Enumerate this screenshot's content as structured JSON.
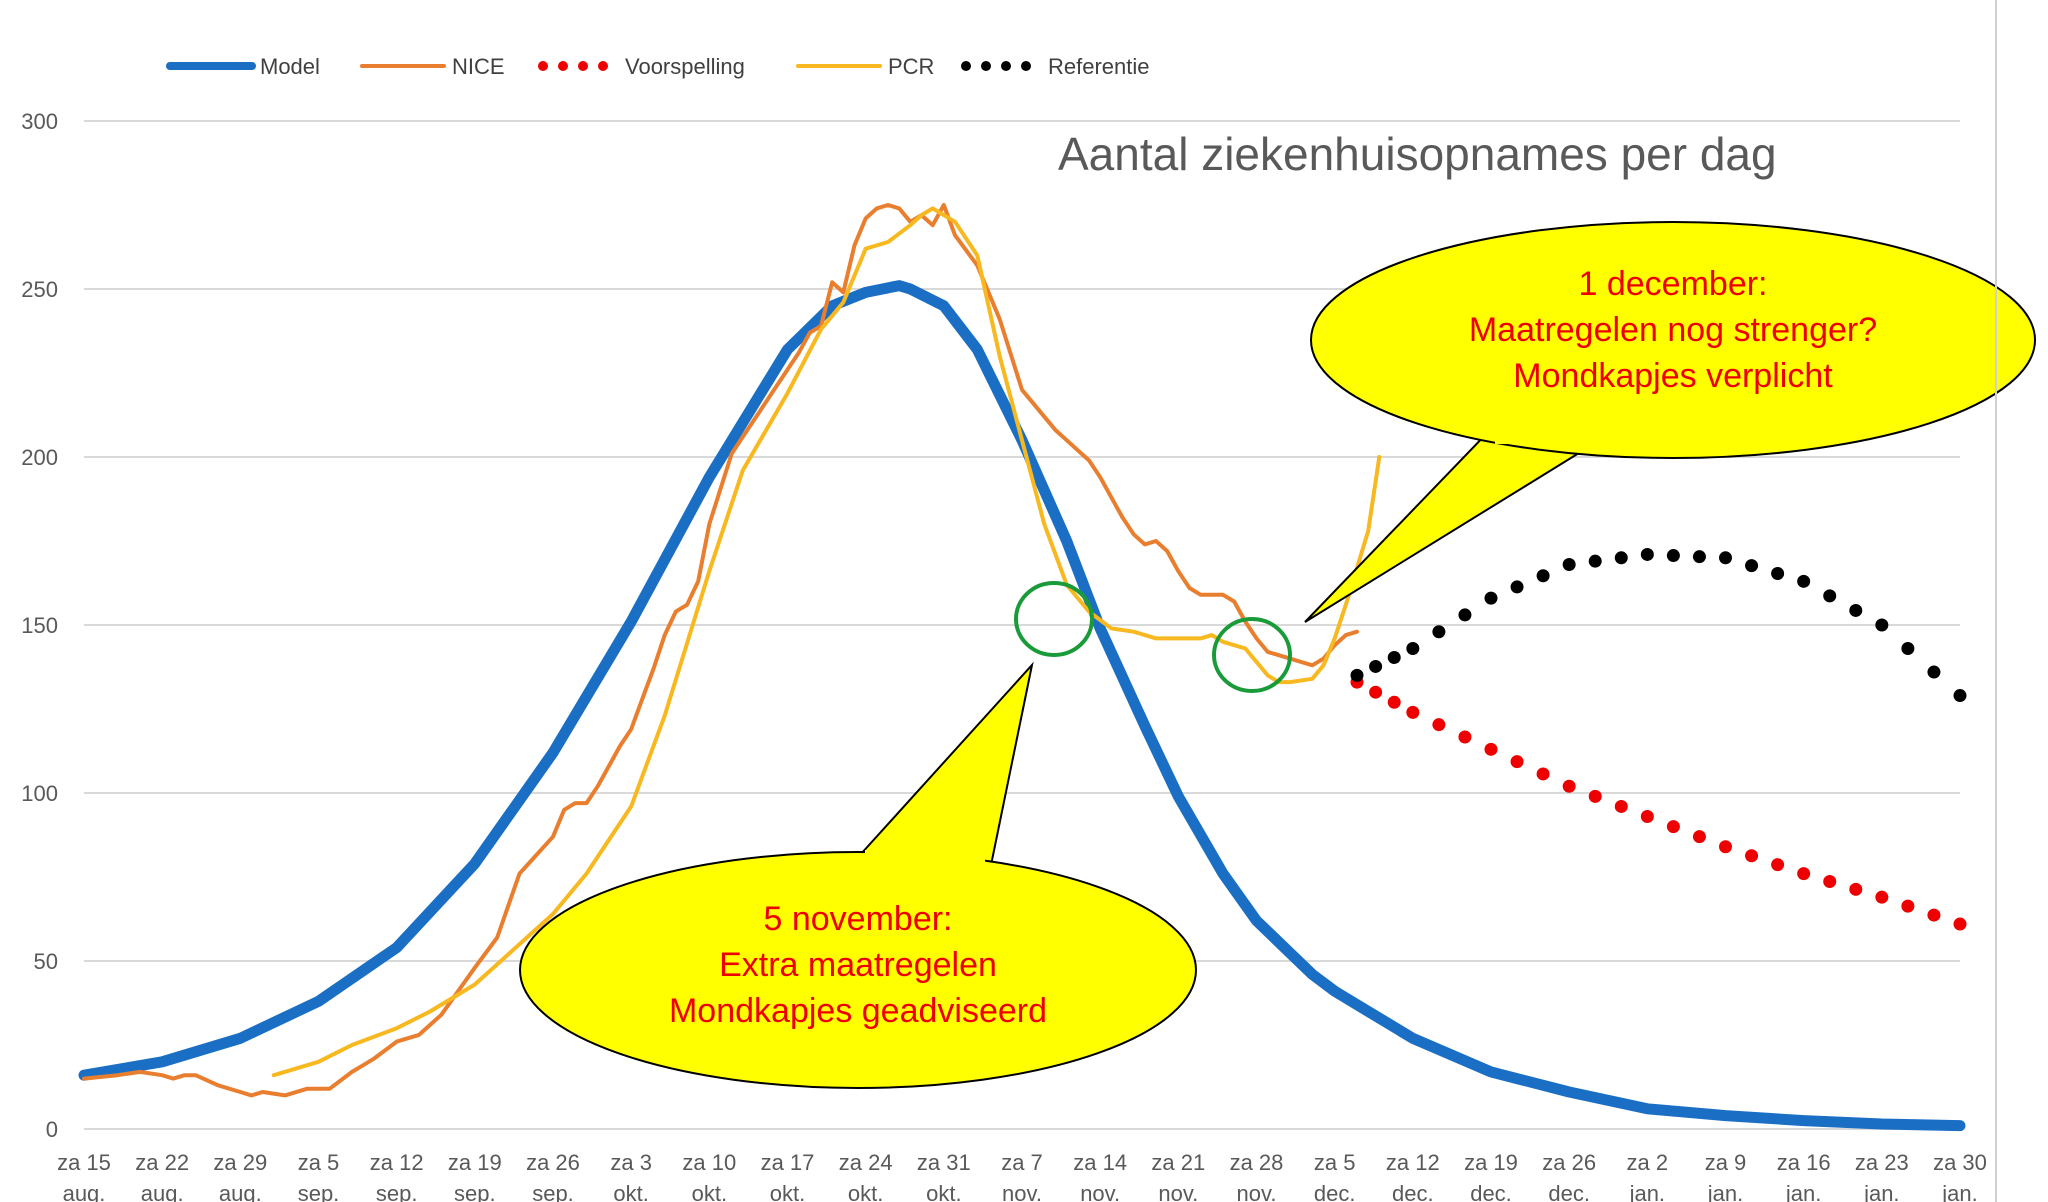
{
  "chart_data": {
    "type": "line",
    "title": "Aantal ziekenhuisopnames per dag",
    "ylim": [
      0,
      300
    ],
    "y_ticks": [
      0,
      50,
      100,
      150,
      200,
      250,
      300
    ],
    "grid": true,
    "legend_position": "top-left",
    "x_ticks": [
      {
        "day": 0,
        "line1": "za 15",
        "line2": "aug."
      },
      {
        "day": 7,
        "line1": "za 22",
        "line2": "aug."
      },
      {
        "day": 14,
        "line1": "za 29",
        "line2": "aug."
      },
      {
        "day": 21,
        "line1": "za 5",
        "line2": "sep."
      },
      {
        "day": 28,
        "line1": "za 12",
        "line2": "sep."
      },
      {
        "day": 35,
        "line1": "za 19",
        "line2": "sep."
      },
      {
        "day": 42,
        "line1": "za 26",
        "line2": "sep."
      },
      {
        "day": 49,
        "line1": "za 3",
        "line2": "okt."
      },
      {
        "day": 56,
        "line1": "za 10",
        "line2": "okt."
      },
      {
        "day": 63,
        "line1": "za 17",
        "line2": "okt."
      },
      {
        "day": 70,
        "line1": "za 24",
        "line2": "okt."
      },
      {
        "day": 77,
        "line1": "za 31",
        "line2": "okt."
      },
      {
        "day": 84,
        "line1": "za 7",
        "line2": "nov."
      },
      {
        "day": 91,
        "line1": "za 14",
        "line2": "nov."
      },
      {
        "day": 98,
        "line1": "za 21",
        "line2": "nov."
      },
      {
        "day": 105,
        "line1": "za 28",
        "line2": "nov."
      },
      {
        "day": 112,
        "line1": "za 5",
        "line2": "dec."
      },
      {
        "day": 119,
        "line1": "za 12",
        "line2": "dec."
      },
      {
        "day": 126,
        "line1": "za 19",
        "line2": "dec."
      },
      {
        "day": 133,
        "line1": "za 26",
        "line2": "dec."
      },
      {
        "day": 140,
        "line1": "za 2",
        "line2": "jan."
      },
      {
        "day": 147,
        "line1": "za 9",
        "line2": "jan."
      },
      {
        "day": 154,
        "line1": "za 16",
        "line2": "jan."
      },
      {
        "day": 161,
        "line1": "za 23",
        "line2": "jan."
      },
      {
        "day": 168,
        "line1": "za 30",
        "line2": "jan."
      }
    ],
    "series": [
      {
        "name": "Model",
        "color": "#1a6fc4",
        "style": "solid-thick",
        "x": [
          0,
          7,
          14,
          21,
          28,
          35,
          42,
          49,
          56,
          63,
          67,
          70,
          73,
          74,
          77,
          80,
          84,
          88,
          91,
          95,
          98,
          102,
          105,
          110,
          112,
          115,
          119,
          126,
          133,
          140,
          147,
          154,
          161,
          168
        ],
        "y": [
          16,
          20,
          27,
          38,
          54,
          79,
          112,
          151,
          194,
          232,
          245,
          249,
          251,
          250,
          245,
          232,
          205,
          175,
          149,
          120,
          99,
          76,
          62,
          46,
          41,
          35,
          27,
          17,
          11,
          6,
          4,
          2.5,
          1.5,
          1
        ]
      },
      {
        "name": "NICE",
        "color": "#e97e2e",
        "style": "solid",
        "x": [
          0,
          3,
          5,
          7,
          8,
          9,
          10,
          12,
          14,
          15,
          16,
          18,
          20,
          22,
          24,
          25,
          26,
          28,
          30,
          32,
          35,
          37,
          39,
          42,
          43,
          44,
          45,
          46,
          48,
          49,
          50,
          51,
          52,
          53,
          54,
          55,
          56,
          58,
          59,
          61,
          62,
          64,
          65,
          66,
          67,
          68,
          69,
          70,
          71,
          72,
          73,
          74,
          75,
          76,
          77,
          78,
          80,
          82,
          84,
          86,
          87,
          88,
          89,
          90,
          91,
          92,
          93,
          94,
          95,
          96,
          97,
          98,
          99,
          100,
          101,
          102,
          103,
          104,
          105,
          106,
          107,
          108,
          109,
          110,
          111,
          112,
          113,
          114
        ],
        "y": [
          15,
          16,
          17,
          16,
          15,
          16,
          16,
          13,
          11,
          10,
          11,
          10,
          12,
          12,
          17,
          19,
          21,
          26,
          28,
          34,
          48,
          57,
          76,
          87,
          95,
          97,
          97,
          102,
          114,
          119,
          128,
          137,
          147,
          154,
          156,
          163,
          180,
          201,
          206,
          216,
          221,
          231,
          237,
          239,
          252,
          249,
          263,
          271,
          274,
          275,
          274,
          270,
          272,
          269,
          275,
          266,
          257,
          241,
          220,
          212,
          208,
          205,
          202,
          199,
          194,
          188,
          182,
          177,
          174,
          175,
          172,
          166,
          161,
          159,
          159,
          159,
          157,
          151,
          146,
          142,
          141,
          140,
          139,
          138,
          140,
          144,
          147,
          148
        ]
      },
      {
        "name": "Voorspelling",
        "color": "#ee0000",
        "style": "dotted",
        "x": [
          114,
          119,
          126,
          133,
          140,
          147,
          154,
          161,
          168
        ],
        "y": [
          133,
          124,
          113,
          102,
          93,
          84,
          76,
          69,
          61
        ]
      },
      {
        "name": "PCR",
        "color": "#f8b81f",
        "style": "solid",
        "x": [
          17,
          21,
          24,
          28,
          31,
          35,
          38,
          42,
          45,
          49,
          52,
          56,
          59,
          63,
          66,
          68,
          70,
          72,
          74,
          75,
          76,
          78,
          80,
          82,
          84,
          86,
          88,
          90,
          92,
          94,
          96,
          98,
          100,
          101,
          102,
          104,
          106,
          107,
          108,
          110,
          111,
          112,
          113,
          114,
          115,
          116
        ],
        "y": [
          16,
          20,
          25,
          30,
          35,
          43,
          52,
          64,
          76,
          96,
          123,
          166,
          196,
          219,
          238,
          246,
          262,
          264,
          269,
          272,
          274,
          270,
          260,
          230,
          205,
          180,
          162,
          154,
          149,
          148,
          146,
          146,
          146,
          147,
          145,
          143,
          135,
          133,
          133,
          134,
          138,
          146,
          156,
          167,
          178,
          200
        ]
      },
      {
        "name": "Referentie",
        "color": "#000000",
        "style": "dotted",
        "x": [
          114,
          119,
          126,
          133,
          140,
          147,
          154,
          161,
          168
        ],
        "y": [
          135,
          143,
          158,
          168,
          171,
          170,
          163,
          150,
          129
        ]
      }
    ],
    "annotations": [
      {
        "id": "bubble-dec",
        "lines": [
          "1 december:",
          "Maatregelen nog strenger?",
          "Mondkapjes verplicht"
        ]
      },
      {
        "id": "bubble-nov",
        "lines": [
          "5 november:",
          "Extra maatregelen",
          "Mondkapjes geadviseerd"
        ]
      }
    ]
  }
}
